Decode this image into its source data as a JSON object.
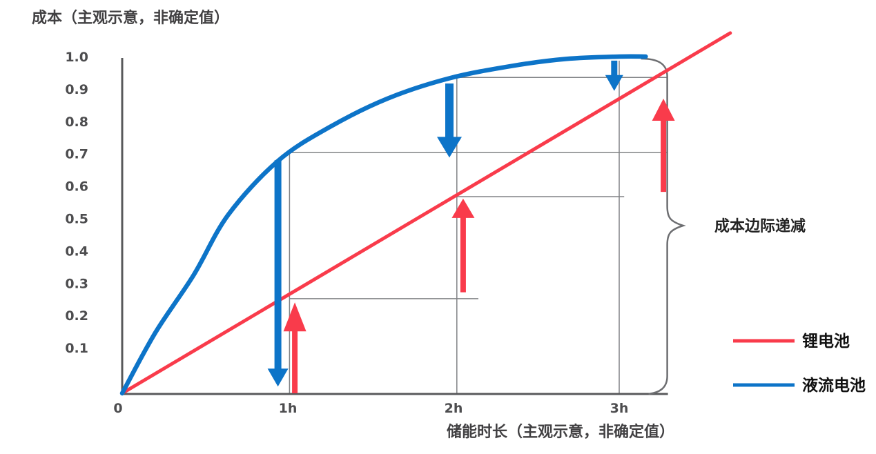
{
  "page": {
    "background": "#FFFFFF"
  },
  "colors": {
    "axis": "#58595B",
    "guideline": "#808285",
    "brace": "#6D6E71",
    "tick_text": "#4D4D4F",
    "title_text": "#414042",
    "lithium_red": "#F93B4B",
    "flow_blue": "#0D74C8"
  },
  "chart_data": {
    "type": "line",
    "title": "成本（主观示意，非确定值）",
    "xlabel": "储能时长（主观示意，非确定值）",
    "x_tick_labels": [
      "0",
      "1h",
      "2h",
      "3h"
    ],
    "x_tick_hours": [
      0,
      1,
      2,
      3
    ],
    "y_tick_labels": [
      "1.0",
      "0.9",
      "0.8",
      "0.7",
      "0.6",
      "0.5",
      "0.4",
      "0.3",
      "0.2",
      "0.1"
    ],
    "y_tick_values": [
      1.0,
      0.9,
      0.8,
      0.7,
      0.6,
      0.5,
      0.4,
      0.3,
      0.2,
      0.1
    ],
    "ylim": [
      0,
      1.0
    ],
    "xlim_hours": [
      0,
      3.3
    ],
    "grid": "partial guide lines only",
    "legend_position": "right-bottom",
    "series": [
      {
        "name": "锂电池",
        "color": "#F93B4B",
        "shape": "straight",
        "points_h": [
          0,
          3.67
        ],
        "points_v": [
          0,
          1.07
        ],
        "readings": {
          "1h": 0.28,
          "2h": 0.58,
          "3h": 0.88
        }
      },
      {
        "name": "液流电池",
        "color": "#0D74C8",
        "shape": "saturating-curve",
        "points_h": [
          0,
          0.2,
          0.43,
          0.64,
          0.94,
          1.25,
          1.6,
          1.97,
          2.35,
          2.68,
          3.0,
          3.16
        ],
        "points_v": [
          0,
          0.18,
          0.35,
          0.53,
          0.69,
          0.79,
          0.875,
          0.935,
          0.972,
          0.993,
          1.0,
          1.0
        ],
        "readings": {
          "1h": 0.71,
          "2h": 0.94,
          "3h": 1.0
        }
      }
    ],
    "guidelines": {
      "horizontal": [
        {
          "v": 0.715,
          "h1": 1.01,
          "h2": 3.29
        },
        {
          "v": 0.938,
          "h1": 2.02,
          "h2": 3.29
        },
        {
          "v": 0.281,
          "h1": 1.01,
          "h2": 2.15
        },
        {
          "v": 0.584,
          "h1": 2.02,
          "h2": 3.03
        }
      ],
      "vertical": [
        {
          "h": 1.01,
          "v1": 0.715,
          "v2": 0
        },
        {
          "h": 2.02,
          "v1": 0.938,
          "v2": 0
        },
        {
          "h": 3.0,
          "v1": 0.988,
          "v2": 0
        }
      ]
    },
    "arrows": [
      {
        "color": "#0D74C8",
        "direction": "down",
        "h": 0.94,
        "from_v": 0.692,
        "to_v": 0.02,
        "shaft_w": 10,
        "head_w": 30,
        "head_l": 26
      },
      {
        "color": "#F93B4B",
        "direction": "up",
        "h": 1.042,
        "from_v": 0.0,
        "to_v": 0.27,
        "shaft_w": 8,
        "head_w": 33,
        "head_l": 42
      },
      {
        "color": "#0D74C8",
        "direction": "down",
        "h": 1.975,
        "from_v": 0.92,
        "to_v": 0.7,
        "shaft_w": 12,
        "head_w": 36,
        "head_l": 30
      },
      {
        "color": "#F93B4B",
        "direction": "up",
        "h": 2.058,
        "from_v": 0.3,
        "to_v": 0.578,
        "shaft_w": 8,
        "head_w": 33,
        "head_l": 28
      },
      {
        "color": "#0D74C8",
        "direction": "down",
        "h": 2.97,
        "from_v": 0.988,
        "to_v": 0.898,
        "shaft_w": 9,
        "head_w": 26,
        "head_l": 23
      },
      {
        "color": "#F93B4B",
        "direction": "up",
        "h": 3.267,
        "from_v": 0.598,
        "to_v": 0.875,
        "shaft_w": 8,
        "head_w": 33,
        "head_l": 32
      }
    ],
    "brace": {
      "label": "成本边际递减",
      "x_h": 3.29,
      "top_v": 1.0,
      "mid_v": 0.5,
      "bottom_v": 0.0
    }
  },
  "legend": {
    "items": [
      {
        "label": "锂电池",
        "color": "#F93B4B"
      },
      {
        "label": "液流电池",
        "color": "#0D74C8"
      }
    ]
  }
}
